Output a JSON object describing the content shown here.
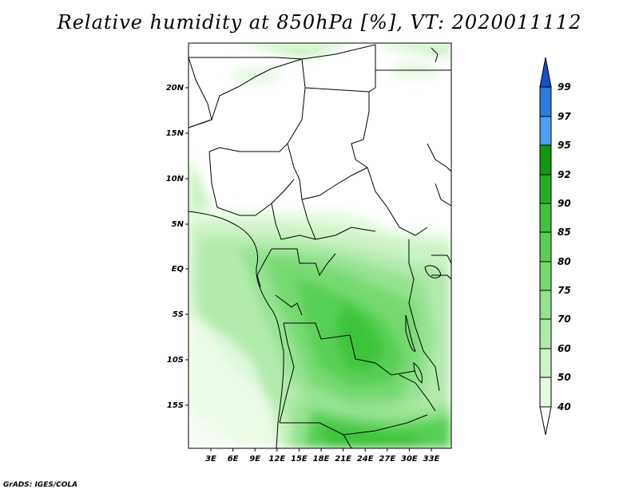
{
  "title": "Relative humidity at 850hPa [%], VT: 2020011112",
  "credit": "GrADS: IGES/COLA",
  "map": {
    "lat_ticks": [
      "20N",
      "15N",
      "10N",
      "5N",
      "EQ",
      "5S",
      "10S",
      "15S"
    ],
    "lon_ticks": [
      "3E",
      "6E",
      "9E",
      "12E",
      "15E",
      "18E",
      "21E",
      "24E",
      "27E",
      "30E",
      "33E"
    ],
    "lon_range": [
      0,
      35
    ],
    "lat_range": [
      -20,
      24.5
    ]
  },
  "colorbar": {
    "levels": [
      "40",
      "50",
      "60",
      "70",
      "75",
      "80",
      "85",
      "90",
      "92",
      "95",
      "97",
      "99"
    ],
    "colors": [
      "#ffffff",
      "#e6f9e2",
      "#ccf3c4",
      "#b0ebaa",
      "#94e390",
      "#76d970",
      "#58cf54",
      "#3cc33a",
      "#24b024",
      "#109810",
      "#4a9ff0",
      "#2a7be0",
      "#1450c8"
    ]
  }
}
